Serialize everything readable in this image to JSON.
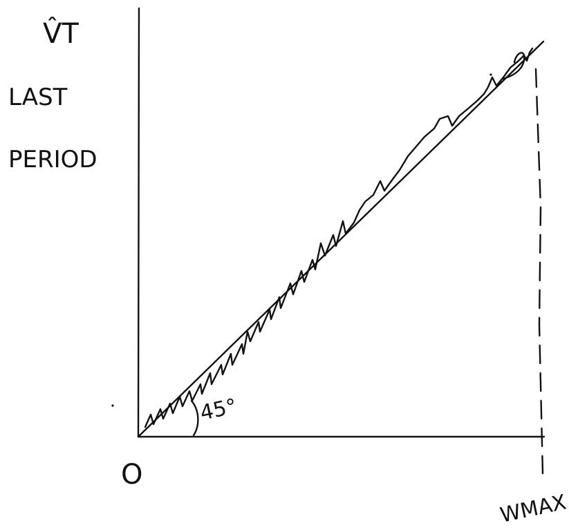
{
  "diagram": {
    "y_label_symbol": "V̂T",
    "y_label_line1": "LAST",
    "y_label_line2": "PERIOD",
    "origin_label": "O",
    "angle_label": "45°",
    "x_max_label": "WMAX"
  },
  "colors": {
    "ink": "#111111",
    "background": "#ffffff"
  }
}
